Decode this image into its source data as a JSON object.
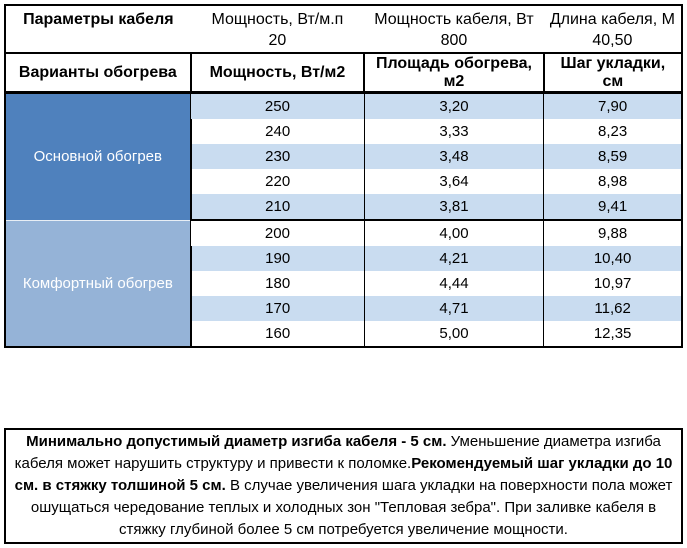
{
  "colors": {
    "section_main_bg": "#4F81BD",
    "section_comfort_bg": "#95B3D7",
    "row_stripe_bg": "#C9DCF0",
    "border": "#000000",
    "section_text": "#FFFFFF"
  },
  "params": {
    "title": "Параметры кабеля",
    "columns": [
      {
        "label": "Мощность, Вт/м.п",
        "value": "20"
      },
      {
        "label": "Мощность кабеля, Вт",
        "value": "800"
      },
      {
        "label": "Длина кабеля, М",
        "value": "40,50"
      }
    ]
  },
  "heating": {
    "header": {
      "variants": "Варианты обогрева",
      "power": "Мощность, Вт/м2",
      "area": "Площадь обогрева, м2",
      "step": "Шаг укладки, см"
    },
    "sections": [
      {
        "name": "Основной обогрев",
        "rows": [
          {
            "power": "250",
            "area": "3,20",
            "step": "7,90"
          },
          {
            "power": "240",
            "area": "3,33",
            "step": "8,23"
          },
          {
            "power": "230",
            "area": "3,48",
            "step": "8,59"
          },
          {
            "power": "220",
            "area": "3,64",
            "step": "8,98"
          },
          {
            "power": "210",
            "area": "3,81",
            "step": "9,41"
          }
        ]
      },
      {
        "name": "Комфортный обогрев",
        "rows": [
          {
            "power": "200",
            "area": "4,00",
            "step": "9,88"
          },
          {
            "power": "190",
            "area": "4,21",
            "step": "10,40"
          },
          {
            "power": "180",
            "area": "4,44",
            "step": "10,97"
          },
          {
            "power": "170",
            "area": "4,71",
            "step": "11,62"
          },
          {
            "power": "160",
            "area": "5,00",
            "step": "12,35"
          }
        ]
      }
    ]
  },
  "note": {
    "segments": [
      {
        "text": "Минимально допустимый диаметр изгиба кабеля - 5 см.",
        "bold": true
      },
      {
        "text": "  Уменьшение диаметра изгиба кабеля может нарушить структуру и привести к поломке.",
        "bold": false
      },
      {
        "text": "Рекомендуемый шаг укладки до 10 см. в стяжку толшиной 5 см.",
        "bold": true
      },
      {
        "text": " В  случае увеличения шага укладки на поверхности пола может ошущаться чередование теплых и холодных зон \"Тепловая зебра\". При заливке кабеля в стяжку глубиной более 5 см потребуется увеличение мощности.",
        "bold": false
      }
    ]
  }
}
